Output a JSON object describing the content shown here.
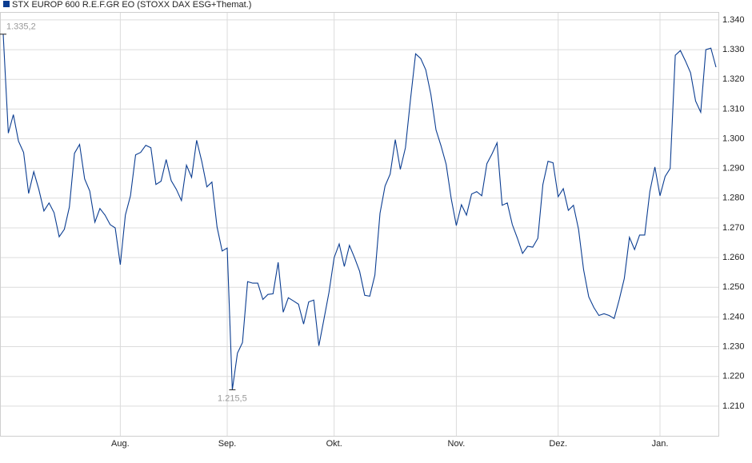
{
  "chart_data": {
    "type": "line",
    "categories": [
      null,
      null,
      null,
      null,
      null,
      null,
      null,
      null,
      null,
      null,
      null,
      null,
      null,
      null,
      null,
      null,
      null,
      null,
      null,
      null,
      null,
      null,
      null,
      "Aug.",
      null,
      null,
      null,
      null,
      null,
      null,
      null,
      null,
      null,
      null,
      null,
      null,
      null,
      null,
      null,
      null,
      null,
      null,
      null,
      null,
      "Sep.",
      null,
      null,
      null,
      null,
      null,
      null,
      null,
      null,
      null,
      null,
      null,
      null,
      null,
      null,
      null,
      null,
      null,
      null,
      null,
      null,
      "Okt.",
      null,
      null,
      null,
      null,
      null,
      null,
      null,
      null,
      null,
      null,
      null,
      null,
      null,
      null,
      null,
      null,
      null,
      null,
      null,
      null,
      null,
      null,
      null,
      "Nov.",
      null,
      null,
      null,
      null,
      null,
      null,
      null,
      null,
      null,
      null,
      null,
      null,
      null,
      null,
      null,
      null,
      null,
      null,
      null,
      "Dez.",
      null,
      null,
      null,
      null,
      null,
      null,
      null,
      null,
      null,
      null,
      null,
      null,
      null,
      null,
      null,
      null,
      null,
      null,
      null,
      "Jan.",
      null,
      null,
      null,
      null,
      null,
      null,
      null,
      null,
      null,
      null,
      null
    ],
    "series": [
      {
        "name": "STX EUROP 600 R.E.F.GR EO (STOXX DAX ESG+Themat.)",
        "color": "#0b3d91",
        "values": [
          1.3352,
          1.3019,
          1.3081,
          1.2992,
          1.2954,
          1.2816,
          1.2889,
          1.283,
          1.2757,
          1.2784,
          1.2751,
          1.267,
          1.2695,
          1.277,
          1.2951,
          1.2981,
          1.2865,
          1.2824,
          1.2719,
          1.2765,
          1.2743,
          1.2711,
          1.27,
          1.2576,
          1.2743,
          1.2808,
          1.2946,
          1.2954,
          1.2978,
          1.297,
          1.2846,
          1.2857,
          1.293,
          1.2859,
          1.283,
          1.2792,
          1.2911,
          1.287,
          1.2995,
          1.2924,
          1.2838,
          1.2854,
          1.2703,
          1.2622,
          1.2632,
          1.2155,
          1.2278,
          1.2314,
          1.2519,
          1.2514,
          1.2514,
          1.2459,
          1.2476,
          1.2478,
          1.2584,
          1.2416,
          1.2465,
          1.2454,
          1.2443,
          1.2376,
          1.2451,
          1.2457,
          1.2303,
          1.2392,
          1.2484,
          1.26,
          1.2646,
          1.257,
          1.2641,
          1.26,
          1.2554,
          1.2473,
          1.247,
          1.2541,
          1.2749,
          1.2841,
          1.2881,
          1.2997,
          1.2897,
          1.297,
          1.3132,
          1.3286,
          1.327,
          1.3232,
          1.3149,
          1.303,
          1.2976,
          1.2914,
          1.2797,
          1.2708,
          1.2778,
          1.2743,
          1.2814,
          1.2822,
          1.2808,
          1.2916,
          1.2949,
          1.2986,
          1.2776,
          1.2784,
          1.2711,
          1.2665,
          1.2614,
          1.2638,
          1.2635,
          1.2665,
          1.2846,
          1.2924,
          1.2919,
          1.2805,
          1.2832,
          1.2759,
          1.2776,
          1.2695,
          1.2559,
          1.2468,
          1.2432,
          1.2405,
          1.2411,
          1.2405,
          1.2395,
          1.2459,
          1.253,
          1.2668,
          1.2627,
          1.2676,
          1.2676,
          1.2822,
          1.2905,
          1.2808,
          1.2873,
          1.29,
          1.3281,
          1.3297,
          1.3262,
          1.3222,
          1.3127,
          1.3089,
          1.33,
          1.3305,
          1.3241
        ]
      }
    ],
    "annotations": [
      {
        "value": 1.3352,
        "label": "1.335,2"
      },
      {
        "value": 1.2155,
        "label": "1.215,5"
      }
    ],
    "ylim": [
      1.2,
      1.3424
    ],
    "yticks": [
      {
        "value": 1.21,
        "label": "1.210"
      },
      {
        "value": 1.22,
        "label": "1.220"
      },
      {
        "value": 1.23,
        "label": "1.230"
      },
      {
        "value": 1.24,
        "label": "1.240"
      },
      {
        "value": 1.25,
        "label": "1.250"
      },
      {
        "value": 1.26,
        "label": "1.260"
      },
      {
        "value": 1.27,
        "label": "1.270"
      },
      {
        "value": 1.28,
        "label": "1.280"
      },
      {
        "value": 1.29,
        "label": "1.290"
      },
      {
        "value": 1.3,
        "label": "1.300"
      },
      {
        "value": 1.31,
        "label": "1.310"
      },
      {
        "value": 1.32,
        "label": "1.320"
      },
      {
        "value": 1.33,
        "label": "1.330"
      },
      {
        "value": 1.34,
        "label": "1.340"
      }
    ],
    "grid": true
  }
}
